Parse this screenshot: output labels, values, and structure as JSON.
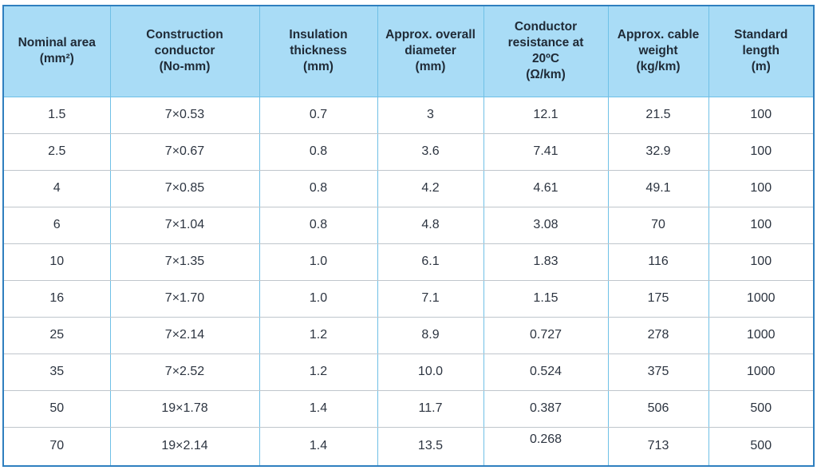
{
  "table": {
    "headers": [
      [
        "Nominal area",
        "(mm²)"
      ],
      [
        "Construction",
        "conductor",
        "(No-mm)"
      ],
      [
        "Insulation",
        "thickness",
        "(mm)"
      ],
      [
        "Approx. overall",
        "diameter",
        "(mm)"
      ],
      [
        "Conductor",
        "resistance at",
        "20ºC",
        "(Ω/km)"
      ],
      [
        "Approx. cable",
        "weight",
        "(kg/km)"
      ],
      [
        "Standard",
        "length",
        "(m)"
      ]
    ],
    "rows": [
      [
        "1.5",
        "7×0.53",
        "0.7",
        "3",
        "12.1",
        "21.5",
        "100"
      ],
      [
        "2.5",
        "7×0.67",
        "0.8",
        "3.6",
        "7.41",
        "32.9",
        "100"
      ],
      [
        "4",
        "7×0.85",
        "0.8",
        "4.2",
        "4.61",
        "49.1",
        "100"
      ],
      [
        "6",
        "7×1.04",
        "0.8",
        "4.8",
        "3.08",
        "70",
        "100"
      ],
      [
        "10",
        "7×1.35",
        "1.0",
        "6.1",
        "1.83",
        "116",
        "100"
      ],
      [
        "16",
        "7×1.70",
        "1.0",
        "7.1",
        "1.15",
        "175",
        "1000"
      ],
      [
        "25",
        "7×2.14",
        "1.2",
        "8.9",
        "0.727",
        "278",
        "1000"
      ],
      [
        "35",
        "7×2.52",
        "1.2",
        "10.0",
        "0.524",
        "375",
        "1000"
      ],
      [
        "50",
        "19×1.78",
        "1.4",
        "11.7",
        "0.387",
        "506",
        "500"
      ],
      [
        "70",
        "19×2.14",
        "1.4",
        "13.5",
        "0.268",
        "713",
        "500"
      ]
    ]
  },
  "colors": {
    "header_bg": "#a9dcf6",
    "outer_border": "#2f7fbf",
    "grid_line": "#6fc0e6",
    "text": "#2c3440"
  }
}
